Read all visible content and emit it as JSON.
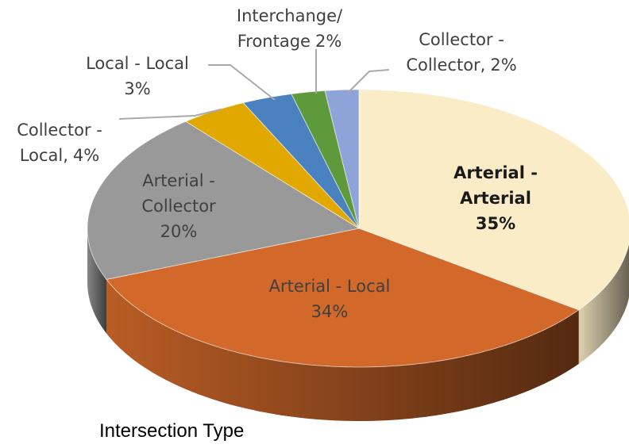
{
  "chart_data": {
    "type": "pie3d",
    "title": "Intersection Type",
    "categories": [
      "Arterial - Arterial",
      "Arterial - Local",
      "Arterial - Collector",
      "Collector - Local,",
      "Local - Local",
      "Interchange/ Frontage",
      "Collector - Collector,"
    ],
    "values": [
      35,
      34,
      20,
      4,
      3,
      2,
      2
    ],
    "value_labels": [
      "35%",
      "34%",
      "20%",
      "4%",
      "3%",
      "2%",
      "2%"
    ],
    "colors": [
      "#fbecc8",
      "#d2692a",
      "#999999",
      "#e1a800",
      "#4a82c0",
      "#5e9a3c",
      "#8ea3d8"
    ]
  }
}
